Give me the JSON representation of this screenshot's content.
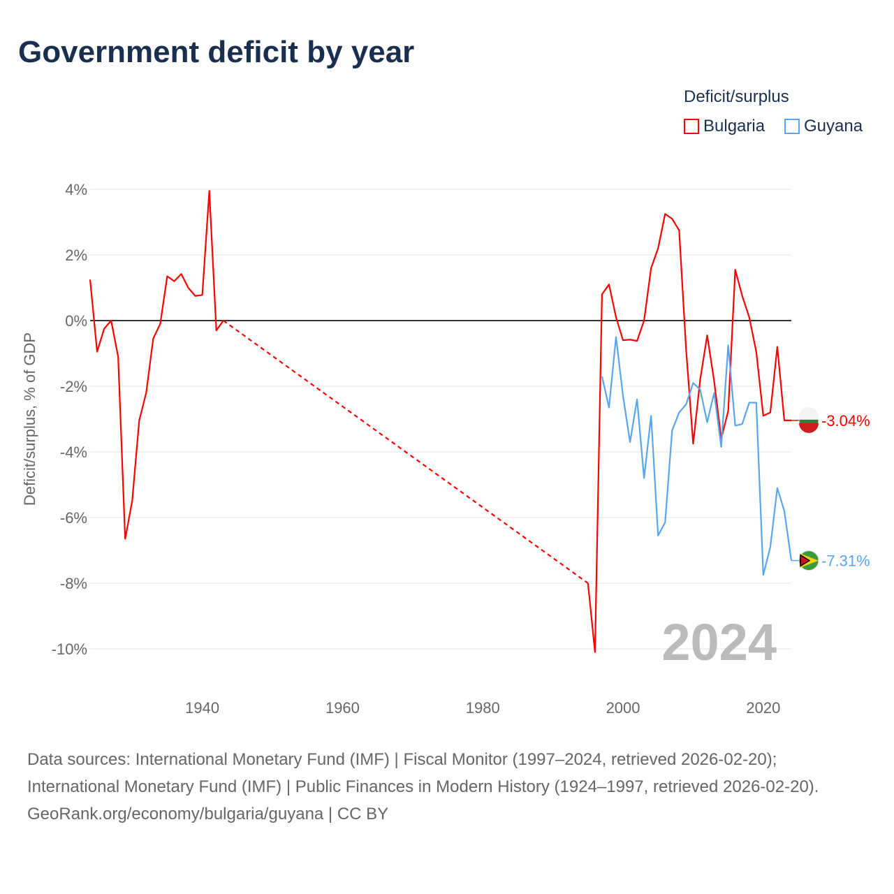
{
  "chart_data": {
    "type": "line",
    "title": "Government deficit by year",
    "xlabel": "",
    "ylabel": "Deficit/surplus, % of GDP",
    "xlim": [
      1924,
      2024
    ],
    "ylim": [
      -10,
      4
    ],
    "yticks": [
      4,
      2,
      0,
      -2,
      -4,
      -6,
      -8,
      -10
    ],
    "ytick_labels": [
      "4%",
      "2%",
      "0%",
      "-2%",
      "-4%",
      "-6%",
      "-8%",
      "-10%"
    ],
    "xticks": [
      1940,
      1960,
      1980,
      2000,
      2020
    ],
    "xtick_labels": [
      "1940",
      "1960",
      "1980",
      "2000",
      "2020"
    ],
    "legend_title": "Deficit/surplus",
    "legend_position": "top-right",
    "year_label": "2024",
    "series": [
      {
        "name": "Bulgaria",
        "color": "#ff0000",
        "end_label": "-3.04%",
        "segments": [
          {
            "style": "solid",
            "x": [
              1924,
              1925,
              1926,
              1927,
              1928,
              1929,
              1930,
              1931,
              1932,
              1933,
              1934,
              1935,
              1936,
              1937,
              1938,
              1939,
              1940,
              1941,
              1942,
              1943
            ],
            "y": [
              1.25,
              -0.95,
              -0.25,
              0,
              -1.1,
              -6.65,
              -5.5,
              -3.05,
              -2.2,
              -0.55,
              -0.1,
              1.35,
              1.2,
              1.42,
              1.0,
              0.75,
              0.78,
              3.95,
              -0.3,
              0.0
            ]
          },
          {
            "style": "dashed",
            "x": [
              1943,
              1995
            ],
            "y": [
              0.0,
              -8.0
            ]
          },
          {
            "style": "solid",
            "x": [
              1995,
              1996,
              1997,
              1998,
              1999,
              2000,
              2001,
              2002,
              2003,
              2004,
              2005,
              2006,
              2007,
              2008,
              2009,
              2010,
              2011,
              2012,
              2013,
              2014,
              2015,
              2016,
              2017,
              2018,
              2019,
              2020,
              2021,
              2022,
              2023,
              2024
            ],
            "y": [
              -8.0,
              -10.1,
              0.8,
              1.1,
              0.1,
              -0.6,
              -0.58,
              -0.62,
              0.0,
              1.6,
              2.2,
              3.25,
              3.1,
              2.75,
              -0.9,
              -3.75,
              -1.8,
              -0.45,
              -1.85,
              -3.6,
              -2.75,
              1.55,
              0.75,
              0.1,
              -0.95,
              -2.9,
              -2.8,
              -0.8,
              -3.04,
              -3.04
            ]
          }
        ]
      },
      {
        "name": "Guyana",
        "color": "#5aa5ef",
        "end_label": "-7.31%",
        "segments": [
          {
            "style": "solid",
            "x": [
              1997,
              1998,
              1999,
              2000,
              2001,
              2002,
              2003,
              2004,
              2005,
              2006,
              2007,
              2008,
              2009,
              2010,
              2011,
              2012,
              2013,
              2014,
              2015,
              2016,
              2017,
              2018,
              2019,
              2020,
              2021,
              2022,
              2023,
              2024
            ],
            "y": [
              -1.7,
              -2.65,
              -0.5,
              -2.3,
              -3.7,
              -2.4,
              -4.8,
              -2.9,
              -6.55,
              -6.15,
              -3.35,
              -2.8,
              -2.55,
              -1.9,
              -2.1,
              -3.1,
              -2.2,
              -3.85,
              -0.75,
              -3.2,
              -3.15,
              -2.5,
              -2.5,
              -7.75,
              -6.9,
              -5.1,
              -5.8,
              -7.31
            ]
          }
        ]
      }
    ]
  },
  "source": {
    "line1": "Data sources: International Monetary Fund (IMF) | Fiscal Monitor (1997–2024, retrieved 2026-02-20); International Monetary Fund (IMF) | Public Finances in Modern History (1924–1997, retrieved 2026-02-20).",
    "line2": "GeoRank.org/economy/bulgaria/guyana | CC BY"
  }
}
